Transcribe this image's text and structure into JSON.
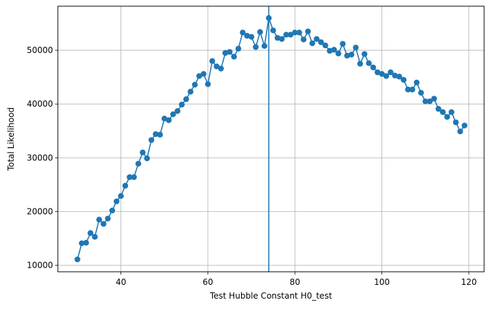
{
  "chart_data": {
    "type": "line",
    "xlabel": "Test Hubble Constant H0_test",
    "ylabel": "Total Likelihood",
    "xlim": [
      25.5,
      123.5
    ],
    "ylim": [
      8800,
      58200
    ],
    "x_ticks": [
      40,
      60,
      80,
      100,
      120
    ],
    "y_ticks": [
      10000,
      20000,
      30000,
      40000,
      50000
    ],
    "grid": true,
    "series": [
      {
        "color": "#1f77b4",
        "marker": "circle",
        "x": [
          30,
          31,
          32,
          33,
          34,
          35,
          36,
          37,
          38,
          39,
          40,
          41,
          42,
          43,
          44,
          45,
          46,
          47,
          48,
          49,
          50,
          51,
          52,
          53,
          54,
          55,
          56,
          57,
          58,
          59,
          60,
          61,
          62,
          63,
          64,
          65,
          66,
          67,
          68,
          69,
          70,
          71,
          72,
          73,
          74,
          75,
          76,
          77,
          78,
          79,
          80,
          81,
          82,
          83,
          84,
          85,
          86,
          87,
          88,
          89,
          90,
          91,
          92,
          93,
          94,
          95,
          96,
          97,
          98,
          99,
          100,
          101,
          102,
          103,
          104,
          105,
          106,
          107,
          108,
          109,
          110,
          111,
          112,
          113,
          114,
          115,
          116,
          117,
          118,
          119
        ],
        "values": [
          11100,
          14100,
          14200,
          16000,
          15300,
          18500,
          17700,
          18700,
          20200,
          21900,
          22900,
          24800,
          26400,
          26400,
          28900,
          31000,
          29900,
          33300,
          34400,
          34300,
          37300,
          37000,
          38100,
          38700,
          39900,
          40900,
          42300,
          43600,
          45200,
          45600,
          43700,
          48000,
          47000,
          46600,
          49500,
          49700,
          48800,
          50300,
          53300,
          52700,
          52500,
          50600,
          53400,
          50800,
          56000,
          53700,
          52300,
          52100,
          52900,
          52900,
          53300,
          53300,
          52000,
          53500,
          51300,
          52100,
          51500,
          50900,
          49900,
          50100,
          49400,
          51200,
          49000,
          49200,
          50500,
          47500,
          49300,
          47600,
          46800,
          45900,
          45600,
          45200,
          45900,
          45300,
          45100,
          44500,
          42700,
          42700,
          44000,
          42100,
          40500,
          40500,
          41000,
          39100,
          38500,
          37600,
          38500,
          36600,
          34900,
          36000
        ]
      }
    ],
    "vline": {
      "x": 74,
      "color": "#1f77b4"
    }
  }
}
